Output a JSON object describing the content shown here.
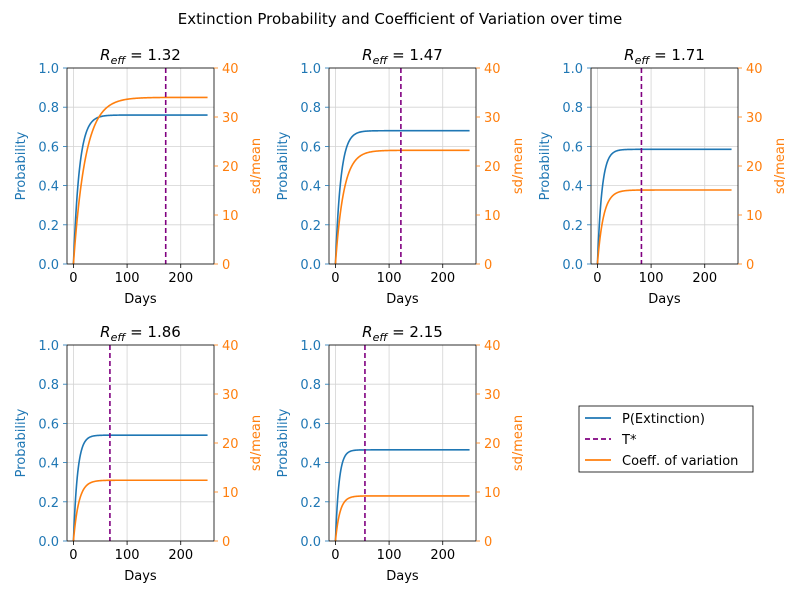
{
  "suptitle": "Extinction Probability and Coefficient of Variation over time",
  "legend": {
    "entries": [
      {
        "label": "P(Extinction)",
        "color": "#1f77b4",
        "style": "solid"
      },
      {
        "label": "T*",
        "color": "#800080",
        "style": "dashed"
      },
      {
        "label": "Coeff. of variation",
        "color": "#ff7f0e",
        "style": "solid"
      }
    ]
  },
  "colors": {
    "probability": "#1f77b4",
    "cv": "#ff7f0e",
    "tstar": "#800080",
    "grid": "#d3d3d3"
  },
  "chart_data": [
    {
      "type": "line",
      "title_symbol": "R",
      "title_sub": "eff",
      "title_value": "1.32",
      "xlabel": "Days",
      "ylabel_left": "Probability",
      "ylabel_right": "sd/mean",
      "xlim": [
        -12,
        262
      ],
      "ylim_left": [
        0,
        1
      ],
      "ylim_right": [
        0,
        40
      ],
      "xticks": [
        0,
        100,
        200
      ],
      "yticks_left": [
        "0.0",
        "0.2",
        "0.4",
        "0.6",
        "0.8",
        "1.0"
      ],
      "yticks_right": [
        "0",
        "10",
        "20",
        "30",
        "40"
      ],
      "grid": true,
      "x_start": 0,
      "x_end": 250,
      "series": [
        {
          "name": "P(Extinction)",
          "axis": "left",
          "plateau": 0.76,
          "rate": 0.09
        },
        {
          "name": "Coeff. of variation",
          "axis": "right",
          "plateau": 34.0,
          "rate": 0.045
        }
      ],
      "t_star": 172
    },
    {
      "type": "line",
      "title_symbol": "R",
      "title_sub": "eff",
      "title_value": "1.47",
      "xlabel": "Days",
      "ylabel_left": "Probability",
      "ylabel_right": "sd/mean",
      "xlim": [
        -12,
        262
      ],
      "ylim_left": [
        0,
        1
      ],
      "ylim_right": [
        0,
        40
      ],
      "xticks": [
        0,
        100,
        200
      ],
      "yticks_left": [
        "0.0",
        "0.2",
        "0.4",
        "0.6",
        "0.8",
        "1.0"
      ],
      "yticks_right": [
        "0",
        "10",
        "20",
        "30",
        "40"
      ],
      "grid": true,
      "x_start": 0,
      "x_end": 250,
      "series": [
        {
          "name": "P(Extinction)",
          "axis": "left",
          "plateau": 0.68,
          "rate": 0.1
        },
        {
          "name": "Coeff. of variation",
          "axis": "right",
          "plateau": 23.2,
          "rate": 0.065
        }
      ],
      "t_star": 122
    },
    {
      "type": "line",
      "title_symbol": "R",
      "title_sub": "eff",
      "title_value": "1.71",
      "xlabel": "Days",
      "ylabel_left": "Probability",
      "ylabel_right": "sd/mean",
      "xlim": [
        -12,
        262
      ],
      "ylim_left": [
        0,
        1
      ],
      "ylim_right": [
        0,
        40
      ],
      "xticks": [
        0,
        100,
        200
      ],
      "yticks_left": [
        "0.0",
        "0.2",
        "0.4",
        "0.6",
        "0.8",
        "1.0"
      ],
      "yticks_right": [
        "0",
        "10",
        "20",
        "30",
        "40"
      ],
      "grid": true,
      "x_start": 0,
      "x_end": 250,
      "series": [
        {
          "name": "P(Extinction)",
          "axis": "left",
          "plateau": 0.585,
          "rate": 0.12
        },
        {
          "name": "Coeff. of variation",
          "axis": "right",
          "plateau": 15.1,
          "rate": 0.09
        }
      ],
      "t_star": 82
    },
    {
      "type": "line",
      "title_symbol": "R",
      "title_sub": "eff",
      "title_value": "1.86",
      "xlabel": "Days",
      "ylabel_left": "Probability",
      "ylabel_right": "sd/mean",
      "xlim": [
        -12,
        262
      ],
      "ylim_left": [
        0,
        1
      ],
      "ylim_right": [
        0,
        40
      ],
      "xticks": [
        0,
        100,
        200
      ],
      "yticks_left": [
        "0.0",
        "0.2",
        "0.4",
        "0.6",
        "0.8",
        "1.0"
      ],
      "yticks_right": [
        "0",
        "10",
        "20",
        "30",
        "40"
      ],
      "grid": true,
      "x_start": 0,
      "x_end": 250,
      "series": [
        {
          "name": "P(Extinction)",
          "axis": "left",
          "plateau": 0.54,
          "rate": 0.13
        },
        {
          "name": "Coeff. of variation",
          "axis": "right",
          "plateau": 12.4,
          "rate": 0.1
        }
      ],
      "t_star": 68
    },
    {
      "type": "line",
      "title_symbol": "R",
      "title_sub": "eff",
      "title_value": "2.15",
      "xlabel": "Days",
      "ylabel_left": "Probability",
      "ylabel_right": "sd/mean",
      "xlim": [
        -12,
        262
      ],
      "ylim_left": [
        0,
        1
      ],
      "ylim_right": [
        0,
        40
      ],
      "xticks": [
        0,
        100,
        200
      ],
      "yticks_left": [
        "0.0",
        "0.2",
        "0.4",
        "0.6",
        "0.8",
        "1.0"
      ],
      "yticks_right": [
        "0",
        "10",
        "20",
        "30",
        "40"
      ],
      "grid": true,
      "x_start": 0,
      "x_end": 250,
      "series": [
        {
          "name": "P(Extinction)",
          "axis": "left",
          "plateau": 0.465,
          "rate": 0.15
        },
        {
          "name": "Coeff. of variation",
          "axis": "right",
          "plateau": 9.2,
          "rate": 0.12
        }
      ],
      "t_star": 55
    }
  ]
}
